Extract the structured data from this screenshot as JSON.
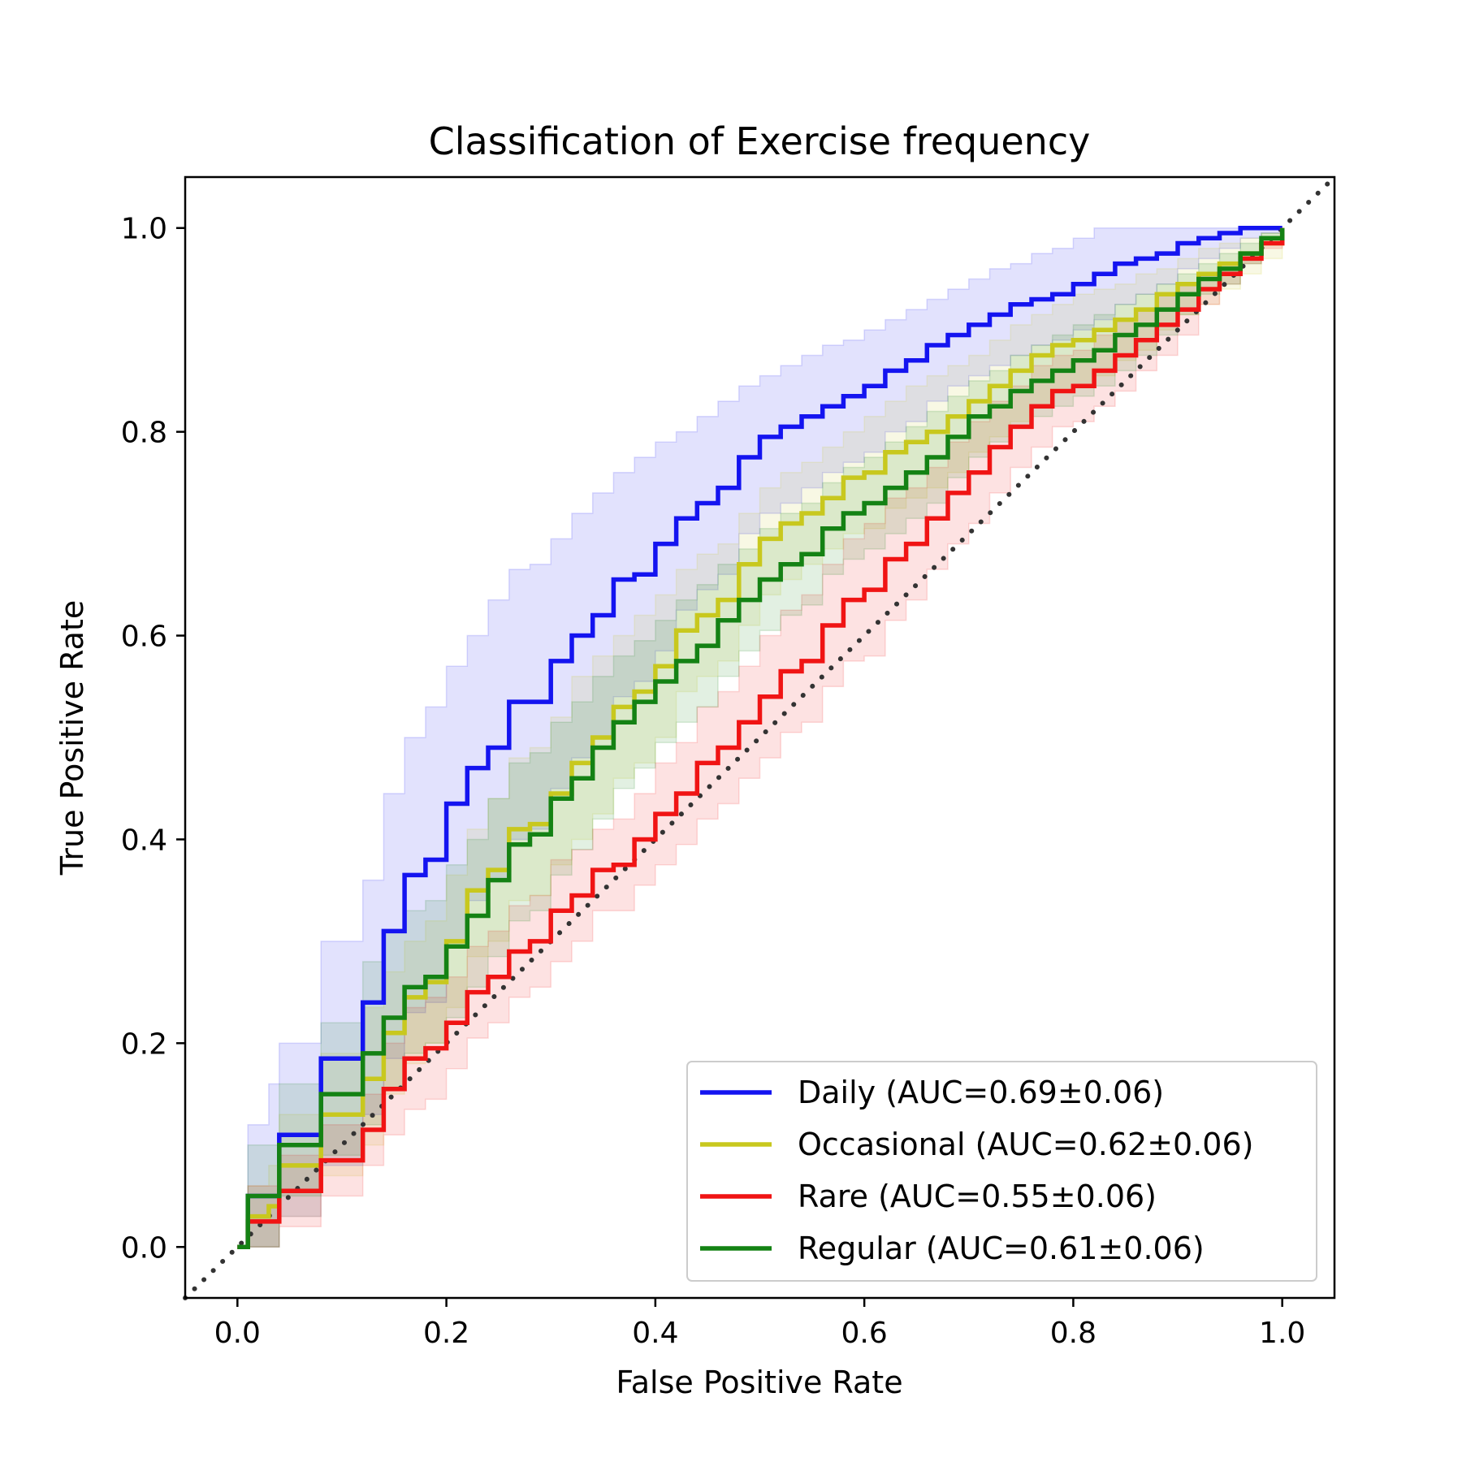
{
  "chart_data": {
    "type": "line",
    "title": "Classification of Exercise frequency",
    "xlabel": "False Positive Rate",
    "ylabel": "True Positive Rate",
    "xlim": [
      -0.05,
      1.05
    ],
    "ylim": [
      -0.05,
      1.05
    ],
    "x_ticks": [
      "0.0",
      "0.2",
      "0.4",
      "0.6",
      "0.8",
      "1.0"
    ],
    "y_ticks": [
      "0.0",
      "0.2",
      "0.4",
      "0.6",
      "0.8",
      "1.0"
    ],
    "grid": false,
    "legend_position": "lower-right",
    "chance_line": {
      "x": [
        -0.05,
        1.05
      ],
      "y": [
        -0.05,
        1.05
      ],
      "style": "dotted",
      "color": "#333333"
    },
    "series": [
      {
        "name": "Daily (AUC=0.69±0.06)",
        "color": "#1414f0",
        "x": [
          0.0,
          0.01,
          0.02,
          0.03,
          0.04,
          0.06,
          0.08,
          0.1,
          0.12,
          0.14,
          0.16,
          0.18,
          0.2,
          0.22,
          0.24,
          0.26,
          0.28,
          0.3,
          0.32,
          0.34,
          0.36,
          0.38,
          0.4,
          0.42,
          0.44,
          0.46,
          0.48,
          0.5,
          0.52,
          0.54,
          0.56,
          0.58,
          0.6,
          0.62,
          0.64,
          0.66,
          0.68,
          0.7,
          0.72,
          0.74,
          0.76,
          0.78,
          0.8,
          0.82,
          0.84,
          0.86,
          0.88,
          0.9,
          0.92,
          0.94,
          0.96,
          0.98,
          1.0
        ],
        "y": [
          0.0,
          0.05,
          0.05,
          0.05,
          0.11,
          0.11,
          0.185,
          0.185,
          0.24,
          0.31,
          0.365,
          0.38,
          0.435,
          0.47,
          0.49,
          0.535,
          0.535,
          0.575,
          0.6,
          0.62,
          0.655,
          0.66,
          0.69,
          0.715,
          0.73,
          0.745,
          0.775,
          0.795,
          0.805,
          0.815,
          0.825,
          0.835,
          0.845,
          0.86,
          0.87,
          0.885,
          0.895,
          0.905,
          0.915,
          0.925,
          0.93,
          0.935,
          0.945,
          0.955,
          0.965,
          0.97,
          0.975,
          0.985,
          0.99,
          0.995,
          1.0,
          1.0,
          1.0
        ],
        "upper": [
          0.0,
          0.12,
          0.12,
          0.16,
          0.2,
          0.2,
          0.3,
          0.3,
          0.36,
          0.445,
          0.5,
          0.53,
          0.57,
          0.6,
          0.635,
          0.665,
          0.67,
          0.695,
          0.72,
          0.74,
          0.76,
          0.775,
          0.79,
          0.8,
          0.815,
          0.83,
          0.845,
          0.855,
          0.865,
          0.875,
          0.885,
          0.89,
          0.9,
          0.91,
          0.92,
          0.93,
          0.94,
          0.95,
          0.96,
          0.965,
          0.975,
          0.98,
          0.99,
          1.0,
          1.0,
          1.0,
          1.0,
          1.0,
          1.0,
          1.0,
          1.0,
          1.0,
          1.0
        ],
        "lower": [
          0.0,
          0.0,
          0.0,
          0.0,
          0.03,
          0.03,
          0.08,
          0.08,
          0.13,
          0.185,
          0.23,
          0.24,
          0.3,
          0.34,
          0.36,
          0.4,
          0.41,
          0.45,
          0.48,
          0.5,
          0.54,
          0.555,
          0.585,
          0.625,
          0.645,
          0.66,
          0.7,
          0.72,
          0.73,
          0.745,
          0.76,
          0.77,
          0.78,
          0.8,
          0.81,
          0.83,
          0.845,
          0.855,
          0.865,
          0.875,
          0.885,
          0.89,
          0.9,
          0.91,
          0.925,
          0.935,
          0.945,
          0.96,
          0.97,
          0.98,
          0.99,
          0.995,
          1.0
        ]
      },
      {
        "name": "Occasional (AUC=0.62±0.06)",
        "color": "#c8c81e",
        "x": [
          0.0,
          0.01,
          0.02,
          0.03,
          0.04,
          0.06,
          0.08,
          0.1,
          0.12,
          0.14,
          0.16,
          0.18,
          0.2,
          0.22,
          0.24,
          0.26,
          0.28,
          0.3,
          0.32,
          0.34,
          0.36,
          0.38,
          0.4,
          0.42,
          0.44,
          0.46,
          0.48,
          0.5,
          0.52,
          0.54,
          0.56,
          0.58,
          0.6,
          0.62,
          0.64,
          0.66,
          0.68,
          0.7,
          0.72,
          0.74,
          0.76,
          0.78,
          0.8,
          0.82,
          0.84,
          0.86,
          0.88,
          0.9,
          0.92,
          0.94,
          0.96,
          0.98,
          1.0
        ],
        "y": [
          0.0,
          0.03,
          0.03,
          0.04,
          0.08,
          0.08,
          0.13,
          0.13,
          0.165,
          0.21,
          0.245,
          0.26,
          0.3,
          0.35,
          0.37,
          0.41,
          0.415,
          0.445,
          0.475,
          0.5,
          0.53,
          0.545,
          0.57,
          0.605,
          0.62,
          0.635,
          0.67,
          0.695,
          0.71,
          0.72,
          0.735,
          0.755,
          0.76,
          0.78,
          0.79,
          0.8,
          0.815,
          0.83,
          0.845,
          0.86,
          0.875,
          0.885,
          0.89,
          0.9,
          0.91,
          0.92,
          0.935,
          0.945,
          0.955,
          0.965,
          0.975,
          0.985,
          1.0
        ],
        "upper": [
          0.0,
          0.06,
          0.06,
          0.08,
          0.13,
          0.13,
          0.19,
          0.19,
          0.235,
          0.27,
          0.3,
          0.32,
          0.365,
          0.41,
          0.44,
          0.48,
          0.49,
          0.52,
          0.56,
          0.58,
          0.6,
          0.62,
          0.64,
          0.665,
          0.68,
          0.69,
          0.72,
          0.745,
          0.76,
          0.77,
          0.785,
          0.8,
          0.815,
          0.83,
          0.845,
          0.855,
          0.865,
          0.875,
          0.89,
          0.905,
          0.915,
          0.925,
          0.935,
          0.94,
          0.945,
          0.955,
          0.96,
          0.97,
          0.98,
          0.985,
          0.99,
          0.995,
          1.0
        ],
        "lower": [
          0.0,
          0.0,
          0.0,
          0.0,
          0.03,
          0.03,
          0.07,
          0.07,
          0.1,
          0.15,
          0.18,
          0.2,
          0.235,
          0.285,
          0.3,
          0.34,
          0.345,
          0.375,
          0.4,
          0.425,
          0.46,
          0.475,
          0.5,
          0.545,
          0.56,
          0.575,
          0.61,
          0.64,
          0.655,
          0.67,
          0.685,
          0.7,
          0.705,
          0.725,
          0.735,
          0.745,
          0.76,
          0.78,
          0.795,
          0.81,
          0.825,
          0.84,
          0.845,
          0.855,
          0.87,
          0.88,
          0.9,
          0.915,
          0.925,
          0.94,
          0.955,
          0.97,
          1.0
        ]
      },
      {
        "name": "Rare (AUC=0.55±0.06)",
        "color": "#f01414",
        "x": [
          0.0,
          0.01,
          0.02,
          0.03,
          0.04,
          0.06,
          0.08,
          0.1,
          0.12,
          0.14,
          0.16,
          0.18,
          0.2,
          0.22,
          0.24,
          0.26,
          0.28,
          0.3,
          0.32,
          0.34,
          0.36,
          0.38,
          0.4,
          0.42,
          0.44,
          0.46,
          0.48,
          0.5,
          0.52,
          0.54,
          0.56,
          0.58,
          0.6,
          0.62,
          0.64,
          0.66,
          0.68,
          0.7,
          0.72,
          0.74,
          0.76,
          0.78,
          0.8,
          0.82,
          0.84,
          0.86,
          0.88,
          0.9,
          0.92,
          0.94,
          0.96,
          0.98,
          1.0
        ],
        "y": [
          0.0,
          0.025,
          0.025,
          0.025,
          0.055,
          0.055,
          0.085,
          0.085,
          0.115,
          0.155,
          0.185,
          0.195,
          0.22,
          0.25,
          0.265,
          0.29,
          0.3,
          0.33,
          0.345,
          0.37,
          0.375,
          0.4,
          0.425,
          0.445,
          0.475,
          0.49,
          0.515,
          0.54,
          0.565,
          0.575,
          0.61,
          0.635,
          0.645,
          0.675,
          0.69,
          0.715,
          0.74,
          0.76,
          0.785,
          0.805,
          0.825,
          0.84,
          0.845,
          0.86,
          0.875,
          0.89,
          0.905,
          0.92,
          0.94,
          0.955,
          0.97,
          0.985,
          1.0
        ],
        "upper": [
          0.0,
          0.06,
          0.06,
          0.06,
          0.09,
          0.09,
          0.12,
          0.12,
          0.15,
          0.2,
          0.235,
          0.245,
          0.265,
          0.295,
          0.31,
          0.335,
          0.345,
          0.38,
          0.39,
          0.41,
          0.42,
          0.445,
          0.475,
          0.495,
          0.53,
          0.545,
          0.57,
          0.6,
          0.625,
          0.64,
          0.67,
          0.695,
          0.71,
          0.735,
          0.745,
          0.765,
          0.79,
          0.81,
          0.83,
          0.845,
          0.865,
          0.875,
          0.88,
          0.895,
          0.91,
          0.92,
          0.935,
          0.945,
          0.955,
          0.965,
          0.975,
          0.99,
          1.0
        ],
        "lower": [
          0.0,
          0.0,
          0.0,
          0.0,
          0.02,
          0.02,
          0.05,
          0.05,
          0.08,
          0.11,
          0.135,
          0.145,
          0.175,
          0.205,
          0.22,
          0.245,
          0.255,
          0.28,
          0.3,
          0.33,
          0.33,
          0.355,
          0.375,
          0.395,
          0.42,
          0.435,
          0.46,
          0.48,
          0.505,
          0.515,
          0.55,
          0.575,
          0.58,
          0.615,
          0.635,
          0.665,
          0.69,
          0.71,
          0.74,
          0.765,
          0.785,
          0.805,
          0.81,
          0.825,
          0.84,
          0.86,
          0.875,
          0.895,
          0.925,
          0.945,
          0.965,
          0.98,
          1.0
        ]
      },
      {
        "name": "Regular (AUC=0.61±0.06)",
        "color": "#148214",
        "x": [
          0.0,
          0.01,
          0.02,
          0.03,
          0.04,
          0.06,
          0.08,
          0.1,
          0.12,
          0.14,
          0.16,
          0.18,
          0.2,
          0.22,
          0.24,
          0.26,
          0.28,
          0.3,
          0.32,
          0.34,
          0.36,
          0.38,
          0.4,
          0.42,
          0.44,
          0.46,
          0.48,
          0.5,
          0.52,
          0.54,
          0.56,
          0.58,
          0.6,
          0.62,
          0.64,
          0.66,
          0.68,
          0.7,
          0.72,
          0.74,
          0.76,
          0.78,
          0.8,
          0.82,
          0.84,
          0.86,
          0.88,
          0.9,
          0.92,
          0.94,
          0.96,
          0.98,
          1.0
        ],
        "y": [
          0.0,
          0.05,
          0.05,
          0.05,
          0.1,
          0.1,
          0.15,
          0.15,
          0.19,
          0.225,
          0.255,
          0.265,
          0.295,
          0.325,
          0.36,
          0.395,
          0.405,
          0.44,
          0.46,
          0.49,
          0.515,
          0.535,
          0.555,
          0.575,
          0.59,
          0.615,
          0.635,
          0.655,
          0.67,
          0.68,
          0.705,
          0.72,
          0.73,
          0.745,
          0.76,
          0.775,
          0.795,
          0.815,
          0.825,
          0.84,
          0.85,
          0.86,
          0.87,
          0.88,
          0.895,
          0.905,
          0.92,
          0.935,
          0.95,
          0.96,
          0.975,
          0.99,
          1.0
        ],
        "upper": [
          0.0,
          0.1,
          0.1,
          0.1,
          0.16,
          0.16,
          0.22,
          0.22,
          0.28,
          0.31,
          0.33,
          0.34,
          0.375,
          0.4,
          0.44,
          0.475,
          0.485,
          0.515,
          0.535,
          0.56,
          0.58,
          0.595,
          0.615,
          0.635,
          0.65,
          0.67,
          0.685,
          0.705,
          0.72,
          0.73,
          0.75,
          0.765,
          0.775,
          0.79,
          0.805,
          0.82,
          0.835,
          0.85,
          0.86,
          0.875,
          0.885,
          0.895,
          0.905,
          0.915,
          0.925,
          0.935,
          0.945,
          0.955,
          0.965,
          0.975,
          0.985,
          0.995,
          1.0
        ],
        "lower": [
          0.0,
          0.0,
          0.0,
          0.0,
          0.05,
          0.05,
          0.09,
          0.09,
          0.12,
          0.155,
          0.19,
          0.2,
          0.225,
          0.255,
          0.285,
          0.32,
          0.33,
          0.365,
          0.39,
          0.42,
          0.45,
          0.47,
          0.495,
          0.515,
          0.53,
          0.56,
          0.585,
          0.605,
          0.62,
          0.63,
          0.66,
          0.675,
          0.685,
          0.7,
          0.715,
          0.73,
          0.755,
          0.775,
          0.79,
          0.805,
          0.815,
          0.825,
          0.835,
          0.845,
          0.86,
          0.875,
          0.895,
          0.915,
          0.935,
          0.945,
          0.965,
          0.985,
          1.0
        ]
      }
    ]
  }
}
